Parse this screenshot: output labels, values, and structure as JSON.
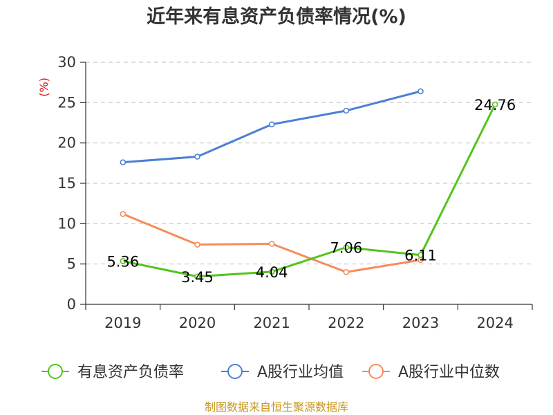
{
  "chart_data": {
    "type": "line",
    "title": "近年来有息资产负债率情况(%)",
    "ylabel": "(%)",
    "categories": [
      "2019",
      "2020",
      "2021",
      "2022",
      "2023",
      "2024"
    ],
    "ylim": [
      0,
      30
    ],
    "yticks": [
      0,
      5,
      10,
      15,
      20,
      25,
      30
    ],
    "grid": true,
    "legend_position": "bottom",
    "series": [
      {
        "name": "有息资产负债率",
        "color": "#52c41a",
        "values": [
          5.36,
          3.45,
          4.04,
          7.06,
          6.11,
          24.76
        ],
        "labels": [
          "5.36",
          "3.45",
          "4.04",
          "7.06",
          "6.11",
          "24.76"
        ]
      },
      {
        "name": "A股行业均值",
        "color": "#4a7fd4",
        "values": [
          17.6,
          18.3,
          22.3,
          24.0,
          26.4,
          null
        ]
      },
      {
        "name": "A股行业中位数",
        "color": "#f58c5a",
        "values": [
          11.2,
          7.4,
          7.5,
          4.0,
          5.5,
          null
        ]
      }
    ]
  },
  "source_text": "制图数据来自恒生聚源数据库"
}
